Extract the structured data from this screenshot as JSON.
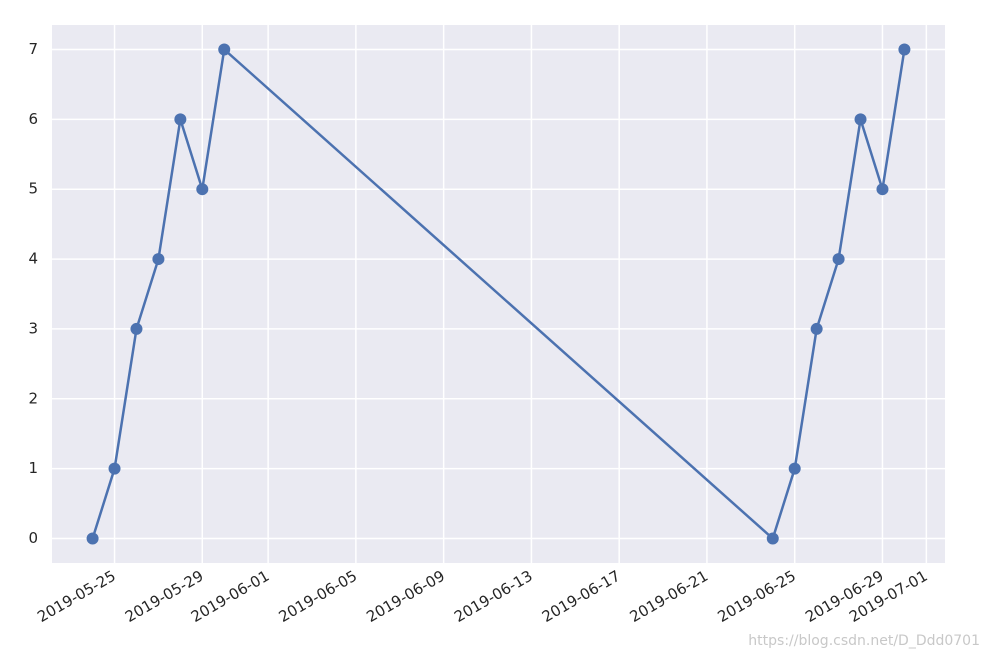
{
  "chart_data": {
    "type": "line",
    "x": [
      "2019-05-24",
      "2019-05-25",
      "2019-05-26",
      "2019-05-27",
      "2019-05-28",
      "2019-05-29",
      "2019-05-30",
      "2019-06-24",
      "2019-06-25",
      "2019-06-26",
      "2019-06-27",
      "2019-06-28",
      "2019-06-29",
      "2019-06-30"
    ],
    "values": [
      0,
      1,
      3,
      4,
      6,
      5,
      7,
      0,
      1,
      3,
      4,
      6,
      5,
      7
    ],
    "color": "#4c72b0",
    "markers": true,
    "grid": true,
    "xlim": [
      "2019-05-22T03:36",
      "2019-07-01T20:24"
    ],
    "xticks": [
      "2019-05-25",
      "2019-05-29",
      "2019-06-01",
      "2019-06-05",
      "2019-06-09",
      "2019-06-13",
      "2019-06-17",
      "2019-06-21",
      "2019-06-25",
      "2019-06-29",
      "2019-07-01"
    ],
    "ylim": [
      -0.35,
      7.35
    ],
    "yticks": [
      0,
      1,
      2,
      3,
      4,
      5,
      6,
      7
    ]
  },
  "watermark": "https://blog.csdn.net/D_Ddd0701"
}
